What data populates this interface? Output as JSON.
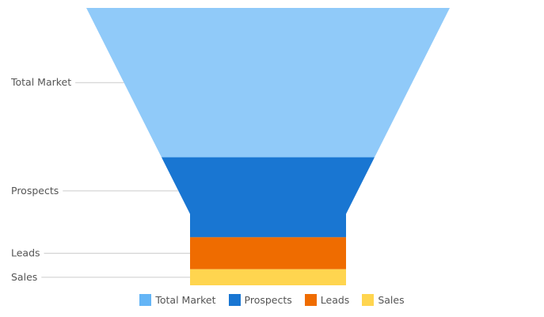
{
  "chart_data": {
    "type": "funnel",
    "title": "",
    "categories": [
      "Total Market",
      "Prospects",
      "Leads",
      "Sales"
    ],
    "values": [
      1400,
      750,
      300,
      150
    ],
    "colors": [
      "#90CAF9",
      "#1976D2",
      "#EF6C00",
      "#FFD54F"
    ],
    "legend_colors": [
      "#64B5F6",
      "#1976D2",
      "#EF6C00",
      "#FFD54F"
    ],
    "legend": {
      "position": "bottom",
      "items": [
        "Total Market",
        "Prospects",
        "Leads",
        "Sales"
      ]
    },
    "grid": false
  }
}
